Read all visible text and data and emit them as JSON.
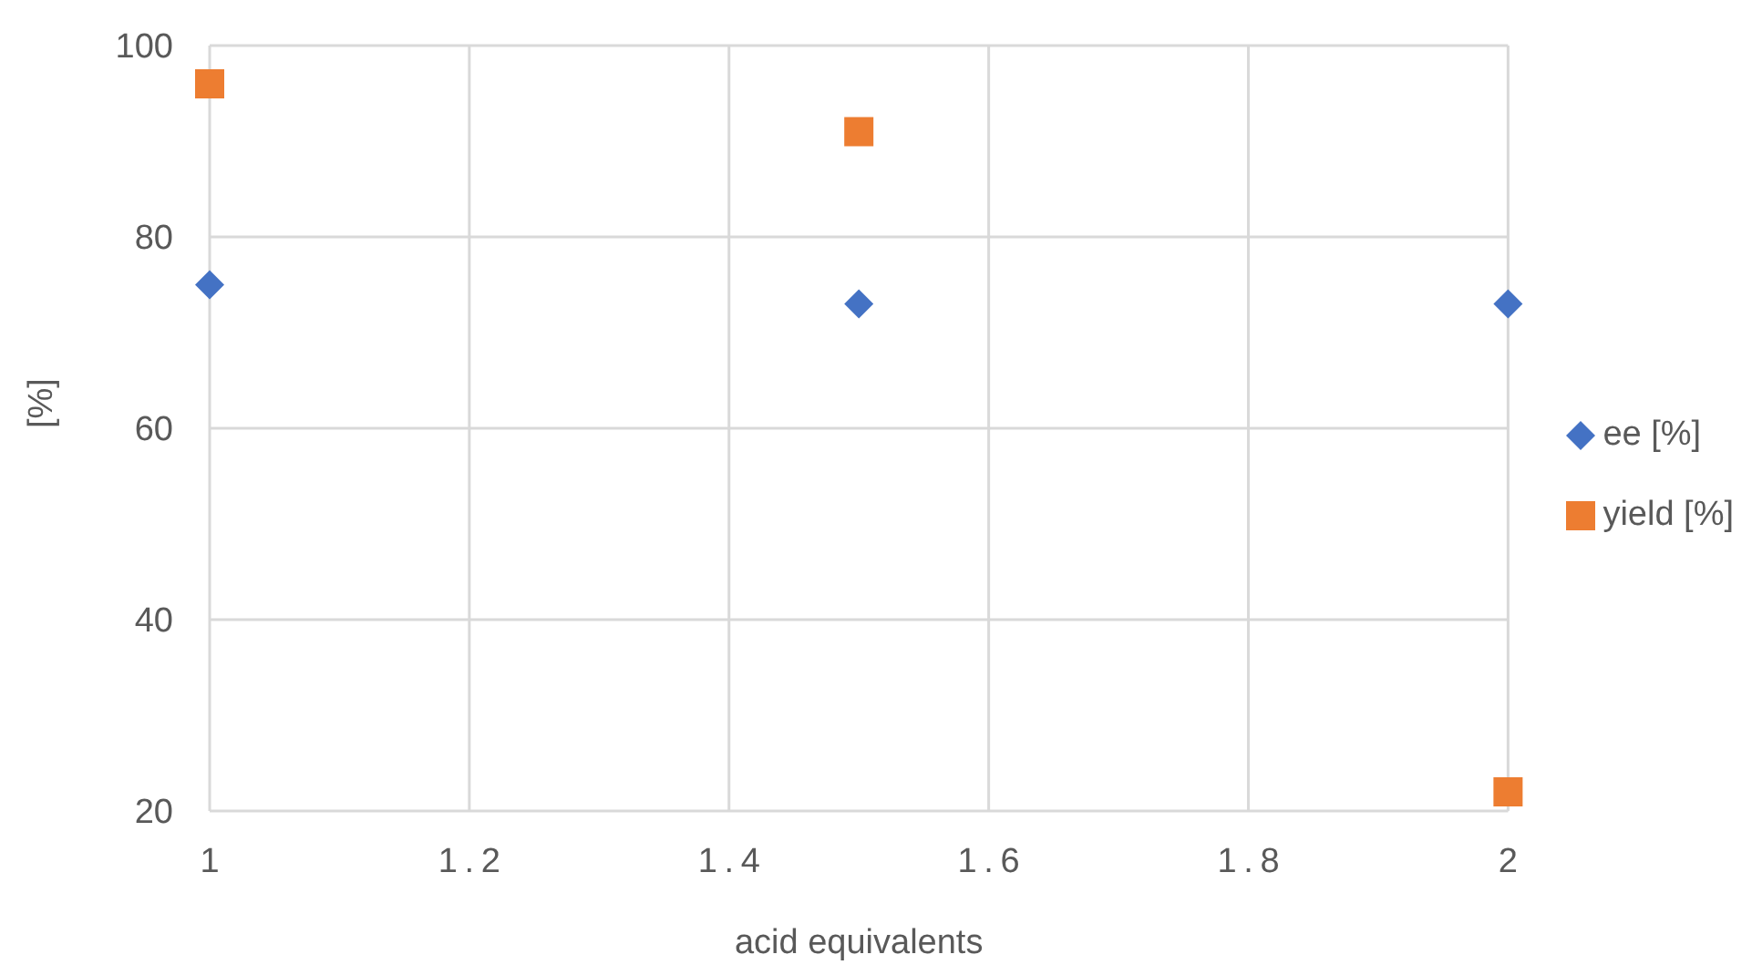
{
  "chart_data": {
    "type": "scatter",
    "xlabel": "acid equivalents",
    "ylabel": "[%]",
    "xlim": [
      1,
      2
    ],
    "xticks": [
      1,
      1.2,
      1.4,
      1.6,
      1.8,
      2
    ],
    "ylim": [
      20,
      100
    ],
    "yticks": [
      20,
      40,
      60,
      80,
      100
    ],
    "grid": true,
    "legend": "right",
    "series": [
      {
        "name": "ee [%]",
        "color": "#4472c4",
        "marker": "diamond",
        "x": [
          1,
          1.5,
          2
        ],
        "values": [
          75,
          73,
          73
        ]
      },
      {
        "name": "yield [%]",
        "color": "#ed7d31",
        "marker": "square",
        "x": [
          1,
          1.5,
          2
        ],
        "values": [
          96,
          91,
          22
        ]
      }
    ]
  }
}
